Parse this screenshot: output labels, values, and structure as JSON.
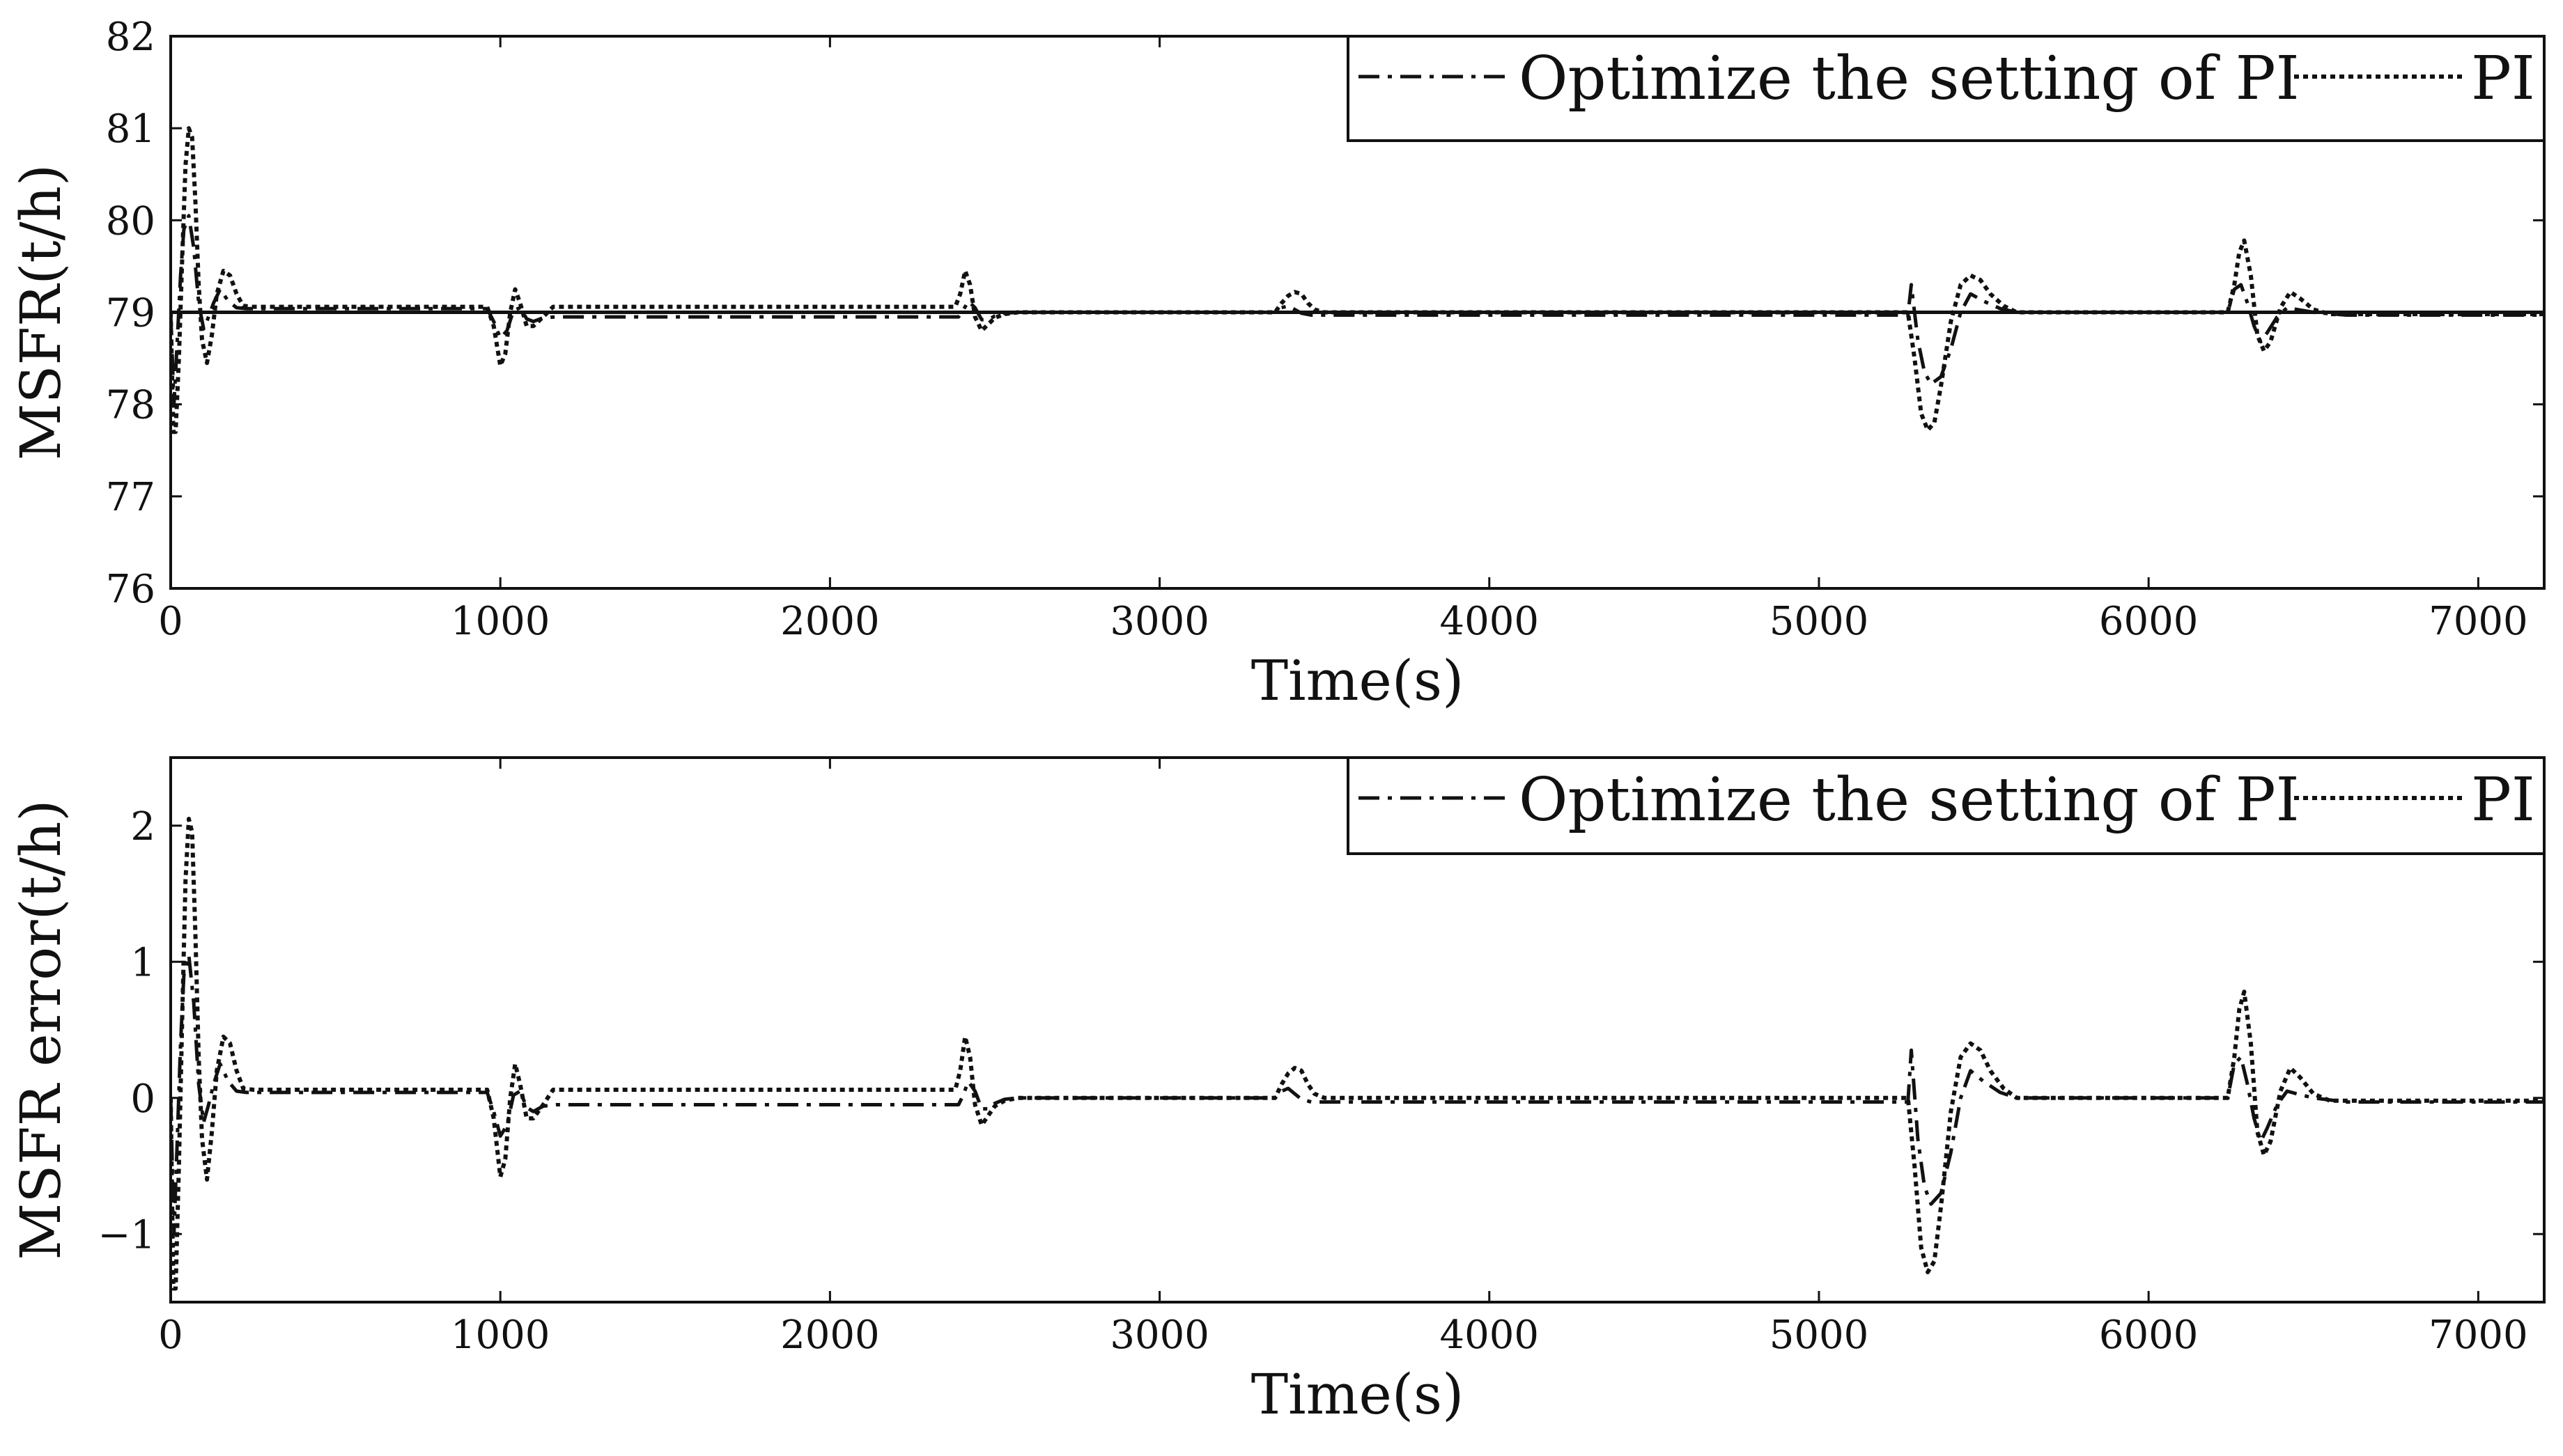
{
  "chart_data": [
    {
      "type": "line",
      "xlabel": "Time(s)",
      "ylabel": "MSFR(t/h)",
      "xlim": [
        0,
        7200
      ],
      "ylim": [
        76,
        82
      ],
      "xticks": [
        0,
        1000,
        2000,
        3000,
        4000,
        5000,
        6000,
        7000
      ],
      "xtick_labels": [
        "0",
        "1000",
        "2000",
        "3000",
        "4000",
        "5000",
        "6000",
        "7000"
      ],
      "yticks": [
        76,
        77,
        78,
        79,
        80,
        81,
        82
      ],
      "ytick_labels": [
        "76",
        "77",
        "78",
        "79",
        "80",
        "81",
        "82"
      ],
      "legend_position": "top-right",
      "reference_line": {
        "name": "setpoint",
        "y": 79
      },
      "series": [
        {
          "name": "Optimize the setting of PI",
          "style": "dash-dot",
          "x": [
            0,
            10,
            20,
            30,
            40,
            55,
            70,
            85,
            100,
            115,
            130,
            150,
            175,
            200,
            230,
            280,
            960,
            980,
            1000,
            1020,
            1040,
            1060,
            1080,
            1100,
            1130,
            1170,
            1250,
            2390,
            2400,
            2420,
            2440,
            2460,
            2480,
            2500,
            2530,
            2570,
            2650,
            3350,
            3370,
            3390,
            3410,
            3430,
            3460,
            3500,
            3600,
            5270,
            5280,
            5300,
            5320,
            5340,
            5370,
            5400,
            5430,
            5460,
            5500,
            5550,
            5600,
            5700,
            6240,
            6260,
            6280,
            6300,
            6320,
            6340,
            6360,
            6390,
            6420,
            6450,
            6500,
            6600,
            7200
          ],
          "y": [
            79,
            78.0,
            78.7,
            79.4,
            79.9,
            80.05,
            79.7,
            79.1,
            78.82,
            78.95,
            79.1,
            79.25,
            79.12,
            79.05,
            79.04,
            79.04,
            79.04,
            78.9,
            78.72,
            78.8,
            79.02,
            79.05,
            78.93,
            78.9,
            78.94,
            78.95,
            78.95,
            78.95,
            79.0,
            79.12,
            79.05,
            78.92,
            78.92,
            78.96,
            78.99,
            79.0,
            79.0,
            79.0,
            79.05,
            79.07,
            79.03,
            78.99,
            78.97,
            78.97,
            78.97,
            78.97,
            79.3,
            78.7,
            78.35,
            78.22,
            78.3,
            78.6,
            79.0,
            79.2,
            79.12,
            79.04,
            79.0,
            79.0,
            79.0,
            79.25,
            79.3,
            79.1,
            78.85,
            78.68,
            78.78,
            78.95,
            79.05,
            79.03,
            79.0,
            78.97,
            78.97
          ]
        },
        {
          "name": "PI",
          "style": "dotted",
          "x": [
            0,
            8,
            15,
            25,
            35,
            45,
            55,
            65,
            75,
            85,
            95,
            110,
            125,
            140,
            160,
            180,
            200,
            220,
            250,
            280,
            960,
            980,
            1000,
            1015,
            1030,
            1045,
            1060,
            1080,
            1100,
            1130,
            1160,
            1190,
            2380,
            2395,
            2410,
            2425,
            2440,
            2460,
            2480,
            2500,
            2530,
            2570,
            2650,
            3350,
            3370,
            3390,
            3410,
            3430,
            3450,
            3470,
            3500,
            3550,
            5270,
            5290,
            5310,
            5330,
            5350,
            5370,
            5400,
            5430,
            5460,
            5490,
            5520,
            5560,
            5600,
            5650,
            6240,
            6260,
            6275,
            6290,
            6310,
            6330,
            6350,
            6370,
            6400,
            6430,
            6460,
            6500,
            6550,
            7200
          ],
          "y": [
            79,
            77.7,
            77.7,
            78.5,
            79.6,
            80.6,
            81.0,
            80.9,
            80.2,
            79.3,
            78.7,
            78.45,
            78.75,
            79.2,
            79.45,
            79.4,
            79.2,
            79.07,
            79.06,
            79.06,
            79.06,
            78.85,
            78.42,
            78.55,
            79.0,
            79.25,
            79.1,
            78.85,
            78.85,
            78.95,
            79.06,
            79.06,
            79.06,
            79.2,
            79.45,
            79.3,
            78.95,
            78.8,
            78.87,
            78.94,
            78.98,
            79.0,
            79.0,
            79.0,
            79.1,
            79.18,
            79.22,
            79.2,
            79.1,
            79.03,
            79.0,
            79.0,
            79.0,
            78.5,
            77.9,
            77.72,
            77.8,
            78.2,
            78.9,
            79.3,
            79.4,
            79.35,
            79.2,
            79.07,
            79.0,
            79.0,
            79.0,
            79.3,
            79.65,
            79.78,
            79.4,
            78.75,
            78.58,
            78.68,
            79.05,
            79.22,
            79.15,
            79.03,
            78.98,
            78.98
          ]
        }
      ]
    },
    {
      "type": "line",
      "xlabel": "Time(s)",
      "ylabel": "MSFR error(t/h)",
      "xlim": [
        0,
        7200
      ],
      "ylim": [
        -1.5,
        2.5
      ],
      "xticks": [
        0,
        1000,
        2000,
        3000,
        4000,
        5000,
        6000,
        7000
      ],
      "xtick_labels": [
        "0",
        "1000",
        "2000",
        "3000",
        "4000",
        "5000",
        "6000",
        "7000"
      ],
      "yticks": [
        -1,
        0,
        1,
        2
      ],
      "ytick_labels": [
        "−1",
        "0",
        "1",
        "2"
      ],
      "legend_position": "top-right",
      "series": [
        {
          "name": "Optimize the setting of PI",
          "style": "dash-dot",
          "x": [
            0,
            10,
            20,
            30,
            40,
            55,
            70,
            85,
            100,
            115,
            130,
            150,
            175,
            200,
            230,
            280,
            960,
            980,
            1000,
            1020,
            1040,
            1060,
            1080,
            1100,
            1130,
            1170,
            1250,
            2390,
            2400,
            2420,
            2440,
            2460,
            2480,
            2500,
            2530,
            2570,
            2650,
            3350,
            3370,
            3390,
            3410,
            3430,
            3460,
            3500,
            3600,
            5270,
            5280,
            5300,
            5320,
            5340,
            5370,
            5400,
            5430,
            5460,
            5500,
            5550,
            5600,
            5700,
            6240,
            6260,
            6280,
            6300,
            6320,
            6340,
            6360,
            6390,
            6420,
            6450,
            6500,
            6600,
            7200
          ],
          "y": [
            0,
            -1.0,
            -0.3,
            0.4,
            0.9,
            1.05,
            0.7,
            0.1,
            -0.18,
            -0.05,
            0.1,
            0.25,
            0.12,
            0.05,
            0.04,
            0.04,
            0.04,
            -0.1,
            -0.28,
            -0.2,
            0.02,
            0.05,
            -0.07,
            -0.1,
            -0.06,
            -0.05,
            -0.05,
            -0.05,
            0.0,
            0.12,
            0.05,
            -0.08,
            -0.08,
            -0.04,
            -0.01,
            0.0,
            0.0,
            0.0,
            0.05,
            0.07,
            0.03,
            -0.01,
            -0.03,
            -0.03,
            -0.03,
            -0.03,
            0.35,
            -0.3,
            -0.65,
            -0.78,
            -0.7,
            -0.4,
            0.0,
            0.2,
            0.12,
            0.04,
            0.0,
            0.0,
            0.0,
            0.25,
            0.3,
            0.1,
            -0.15,
            -0.32,
            -0.22,
            -0.05,
            0.05,
            0.03,
            0.0,
            -0.03,
            -0.03
          ]
        },
        {
          "name": "PI",
          "style": "dotted",
          "x": [
            0,
            8,
            15,
            25,
            35,
            45,
            55,
            65,
            75,
            85,
            95,
            110,
            125,
            140,
            160,
            180,
            200,
            220,
            250,
            280,
            960,
            980,
            1000,
            1015,
            1030,
            1045,
            1060,
            1080,
            1100,
            1130,
            1160,
            1190,
            2380,
            2395,
            2410,
            2425,
            2440,
            2460,
            2480,
            2500,
            2530,
            2570,
            2650,
            3350,
            3370,
            3390,
            3410,
            3430,
            3450,
            3470,
            3500,
            3550,
            5270,
            5290,
            5310,
            5330,
            5350,
            5370,
            5400,
            5430,
            5460,
            5490,
            5520,
            5560,
            5600,
            5650,
            6240,
            6260,
            6275,
            6290,
            6310,
            6330,
            6350,
            6370,
            6400,
            6430,
            6460,
            6500,
            6550,
            7200
          ],
          "y": [
            0,
            -1.4,
            -1.4,
            -0.5,
            0.6,
            1.6,
            2.05,
            1.95,
            1.2,
            0.3,
            -0.3,
            -0.6,
            -0.25,
            0.2,
            0.45,
            0.4,
            0.2,
            0.07,
            0.06,
            0.06,
            0.06,
            -0.15,
            -0.58,
            -0.45,
            0.0,
            0.25,
            0.1,
            -0.15,
            -0.15,
            -0.05,
            0.06,
            0.06,
            0.06,
            0.2,
            0.45,
            0.3,
            -0.05,
            -0.2,
            -0.13,
            -0.06,
            -0.02,
            0.0,
            0.0,
            0.0,
            0.1,
            0.18,
            0.22,
            0.2,
            0.1,
            0.03,
            0.0,
            0.0,
            0.0,
            -0.5,
            -1.1,
            -1.28,
            -1.2,
            -0.8,
            -0.1,
            0.3,
            0.4,
            0.35,
            0.2,
            0.07,
            0.0,
            0.0,
            0.0,
            0.3,
            0.65,
            0.78,
            0.4,
            -0.25,
            -0.42,
            -0.32,
            0.05,
            0.22,
            0.15,
            0.03,
            -0.02,
            -0.02
          ]
        }
      ]
    }
  ]
}
